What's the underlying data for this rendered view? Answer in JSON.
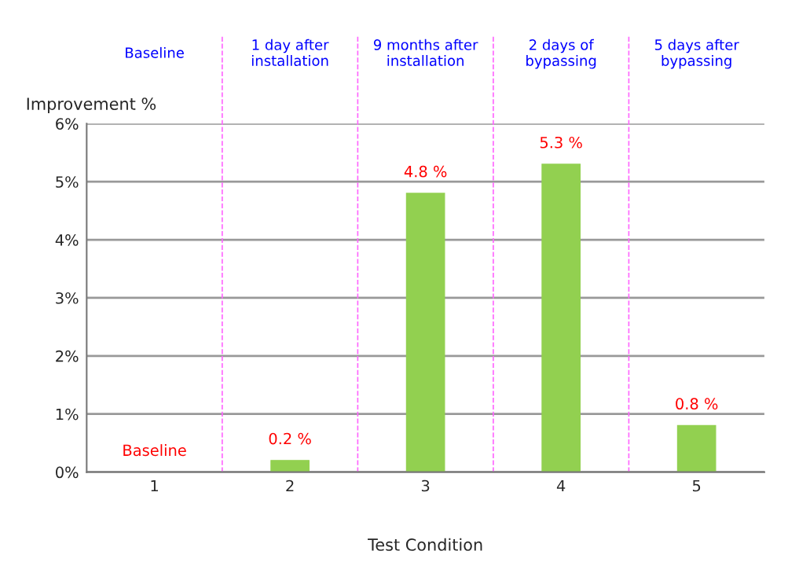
{
  "chart_data": {
    "type": "bar",
    "xlabel": "Test Condition",
    "ylabel": "Improvement %",
    "x": [
      1,
      2,
      3,
      4,
      5
    ],
    "xlim": [
      0.5,
      5.5
    ],
    "xticks": [
      1,
      2,
      3,
      4,
      5
    ],
    "values": [
      0,
      0.2,
      4.8,
      5.3,
      0.8
    ],
    "color": "#92d050",
    "value_labels": [
      "Baseline",
      "0.2 %",
      "4.8 %",
      "5.3 %",
      "0.8 %"
    ],
    "ylim": [
      0,
      6
    ],
    "yticks": [
      {
        "value": 0,
        "label": "0%"
      },
      {
        "value": 1,
        "label": "1%"
      },
      {
        "value": 2,
        "label": "2%"
      },
      {
        "value": 3,
        "label": "3%"
      },
      {
        "value": 4,
        "label": "4%"
      },
      {
        "value": 5,
        "label": "5%"
      },
      {
        "value": 6,
        "label": "6%"
      }
    ],
    "grid": "y",
    "ref_lines": [
      {
        "axis": "x",
        "value": 1.5,
        "color": "#ff66ff",
        "line_style": "dashed"
      },
      {
        "axis": "x",
        "value": 2.5,
        "color": "#ff66ff",
        "line_style": "dashed"
      },
      {
        "axis": "x",
        "value": 3.5,
        "color": "#ff66ff",
        "line_style": "dashed"
      },
      {
        "axis": "x",
        "value": 4.5,
        "color": "#ff66ff",
        "line_style": "dashed"
      }
    ],
    "annotations": [
      "Baseline",
      "1 day after\ninstallation",
      "9 months after\ninstallation",
      "2 days of\nbypassing",
      "5 days after\nbypassing"
    ]
  }
}
